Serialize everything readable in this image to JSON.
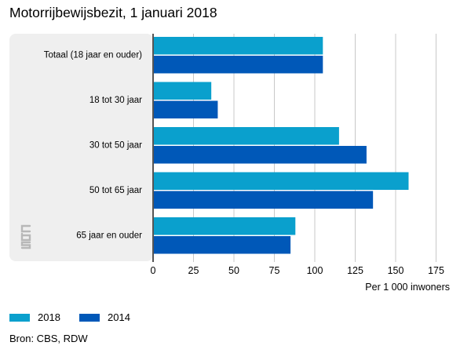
{
  "title": "Motorrijbewijsbezit, 1 januari 2018",
  "source": "Bron: CBS, RDW",
  "colors": {
    "series_2018": "#0aa0cd",
    "series_2014": "#0058b8",
    "panel": "#efefef",
    "grid": "#c8c8c8",
    "axis": "#555555"
  },
  "chart_data": {
    "type": "bar",
    "orientation": "horizontal",
    "categories": [
      "Totaal (18 jaar en ouder)",
      "18 tot 30 jaar",
      "30 tot 50 jaar",
      "50 tot 65 jaar",
      "65 jaar en ouder"
    ],
    "series": [
      {
        "name": "2018",
        "values": [
          105,
          36,
          115,
          158,
          88
        ]
      },
      {
        "name": "2014",
        "values": [
          105,
          40,
          132,
          136,
          85
        ]
      }
    ],
    "xlabel": "Per 1 000 inwoners",
    "xlim": [
      0,
      187.5
    ],
    "xticks": [
      0,
      25,
      50,
      75,
      100,
      125,
      150,
      175
    ],
    "grid": true,
    "legend_position": "bottom-left"
  }
}
